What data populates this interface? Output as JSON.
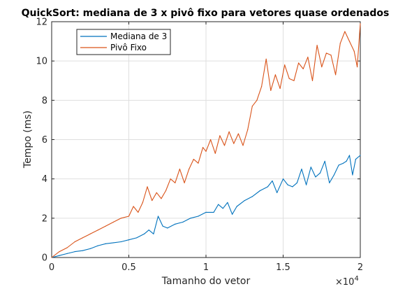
{
  "chart_data": {
    "type": "line",
    "title": "QuickSort: mediana de 3 x pivô fixo para vetores quase ordenados",
    "xlabel": "Tamanho do vetor",
    "ylabel": "Tempo (ms)",
    "x_exponent_label": "×10",
    "x_exponent_power": "4",
    "xlim": [
      0,
      20000
    ],
    "ylim": [
      0,
      12
    ],
    "xticks": [
      0,
      5000,
      10000,
      15000,
      20000
    ],
    "xtick_labels": [
      "0",
      "0.5",
      "1",
      "1.5",
      "2"
    ],
    "yticks": [
      0,
      2,
      4,
      6,
      8,
      10,
      12
    ],
    "ytick_labels": [
      "0",
      "2",
      "4",
      "6",
      "8",
      "10",
      "12"
    ],
    "grid": true,
    "legend_position": "top-left",
    "series": [
      {
        "name": "Mediana de 3",
        "color": "#0072BD",
        "x": [
          0,
          500,
          1000,
          1500,
          2000,
          2500,
          3000,
          3500,
          4000,
          4500,
          5000,
          5500,
          6000,
          6300,
          6600,
          6900,
          7200,
          7500,
          8000,
          8500,
          9000,
          9500,
          10000,
          10500,
          10800,
          11100,
          11400,
          11700,
          12000,
          12500,
          13000,
          13500,
          14000,
          14300,
          14600,
          15000,
          15300,
          15600,
          15900,
          16200,
          16500,
          16800,
          17100,
          17400,
          17700,
          18000,
          18300,
          18600,
          18900,
          19100,
          19300,
          19500,
          19700,
          20000
        ],
        "y": [
          0,
          0.1,
          0.2,
          0.3,
          0.35,
          0.45,
          0.6,
          0.7,
          0.75,
          0.8,
          0.9,
          1.0,
          1.2,
          1.4,
          1.2,
          2.1,
          1.6,
          1.5,
          1.7,
          1.8,
          2.0,
          2.1,
          2.3,
          2.3,
          2.7,
          2.5,
          2.8,
          2.2,
          2.6,
          2.9,
          3.1,
          3.4,
          3.6,
          3.9,
          3.3,
          4.0,
          3.7,
          3.6,
          3.8,
          4.5,
          3.7,
          4.6,
          4.1,
          4.3,
          4.9,
          3.8,
          4.2,
          4.7,
          4.8,
          4.9,
          5.2,
          4.2,
          5.0,
          5.2
        ]
      },
      {
        "name": "Pivô Fixo",
        "color": "#D95319",
        "x": [
          0,
          500,
          1000,
          1500,
          2000,
          2500,
          3000,
          3500,
          4000,
          4500,
          5000,
          5300,
          5600,
          5900,
          6200,
          6500,
          6800,
          7100,
          7400,
          7700,
          8000,
          8300,
          8600,
          8900,
          9200,
          9500,
          9800,
          10000,
          10300,
          10600,
          10900,
          11200,
          11500,
          11800,
          12100,
          12400,
          12700,
          13000,
          13300,
          13600,
          13900,
          14200,
          14500,
          14800,
          15100,
          15400,
          15700,
          16000,
          16300,
          16600,
          16900,
          17200,
          17500,
          17800,
          18100,
          18400,
          18700,
          19000,
          19300,
          19600,
          19800,
          20000
        ],
        "y": [
          0,
          0.3,
          0.5,
          0.8,
          1.0,
          1.2,
          1.4,
          1.6,
          1.8,
          2.0,
          2.1,
          2.6,
          2.3,
          2.8,
          3.6,
          2.9,
          3.3,
          3.0,
          3.4,
          4.0,
          3.8,
          4.5,
          3.8,
          4.5,
          5.0,
          4.8,
          5.6,
          5.4,
          6.0,
          5.3,
          6.2,
          5.7,
          6.4,
          5.8,
          6.3,
          5.7,
          6.5,
          7.7,
          8.0,
          8.7,
          10.1,
          8.5,
          9.3,
          8.6,
          9.8,
          9.1,
          9.0,
          9.9,
          9.6,
          10.2,
          9.0,
          10.8,
          9.7,
          10.4,
          10.3,
          9.3,
          10.9,
          11.5,
          11.0,
          10.5,
          9.7,
          11.9
        ]
      }
    ]
  }
}
